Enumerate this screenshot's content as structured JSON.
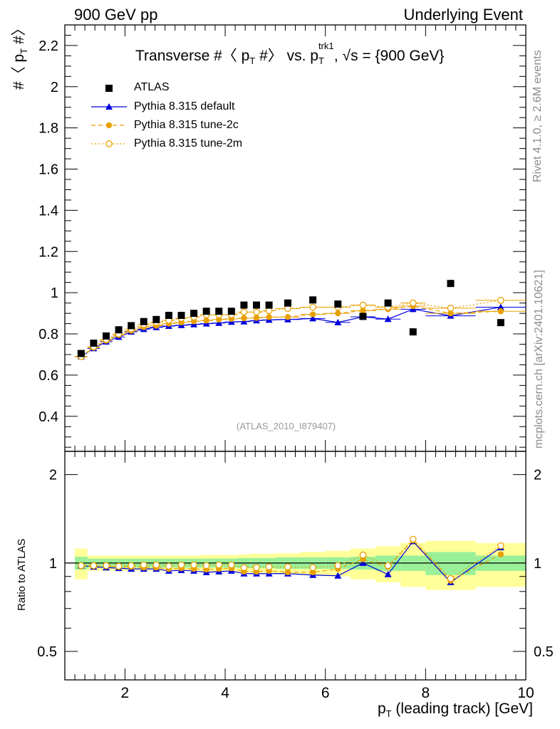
{
  "header": {
    "left": "900 GeV pp",
    "right": "Underlying Event"
  },
  "title": {
    "prefix": "Transverse #〈 p",
    "sub1": "T",
    "mid": " #〉 vs. p",
    "sup2": "trk1",
    "sub2": "T",
    "suffix": ", √s = {900 GeV}"
  },
  "side_labels": {
    "upper": "Rivet 4.1.0, ≥ 2.6M events",
    "lower": "mcplots.cern.ch [arXiv:2401.10621]"
  },
  "analysis_tag": "(ATLAS_2010_I879407)",
  "axes": {
    "ylabel_main_prefix": "#〈 p",
    "ylabel_main_sub": "T",
    "ylabel_main_suffix": " #〉",
    "ylabel_ratio": "Ratio to ATLAS",
    "xlabel_prefix": "p",
    "xlabel_sub": "T",
    "xlabel_suffix": " (leading track) [GeV]"
  },
  "legend": [
    {
      "label": "ATLAS",
      "color": "#000000",
      "marker": "square-icon"
    },
    {
      "label": "Pythia 8.315 default",
      "color": "#0000dd",
      "marker": "triangle-icon"
    },
    {
      "label": "Pythia 8.315 tune-2c",
      "color": "#e8a000",
      "marker": "filled-circle-icon"
    },
    {
      "label": "Pythia 8.315 tune-2m",
      "color": "#e8a000",
      "marker": "open-circle-icon"
    }
  ],
  "chart_data": {
    "type": "scatter",
    "main": {
      "xlim": [
        0.8,
        10.0
      ],
      "ylim": [
        0.23,
        2.3
      ],
      "xticks": [
        2,
        4,
        6,
        8,
        10
      ],
      "yticks": [
        0.4,
        0.6,
        0.8,
        1,
        1.2,
        1.4,
        1.6,
        1.8,
        2,
        2.2
      ],
      "ytick_labels": [
        "0.4",
        "0.6",
        "0.8",
        "1",
        "1.2",
        "1.4",
        "1.6",
        "1.8",
        "2",
        "2.2"
      ],
      "x": [
        1.125,
        1.375,
        1.625,
        1.875,
        2.125,
        2.375,
        2.625,
        2.875,
        3.125,
        3.375,
        3.625,
        3.875,
        4.125,
        4.375,
        4.625,
        4.875,
        5.25,
        5.75,
        6.25,
        6.75,
        7.25,
        7.75,
        8.5,
        9.5
      ],
      "xerr": [
        0.125,
        0.125,
        0.125,
        0.125,
        0.125,
        0.125,
        0.125,
        0.125,
        0.125,
        0.125,
        0.125,
        0.125,
        0.125,
        0.125,
        0.125,
        0.125,
        0.25,
        0.25,
        0.25,
        0.25,
        0.25,
        0.25,
        0.5,
        0.5
      ],
      "series": [
        {
          "name": "ATLAS",
          "values": [
            0.705,
            0.755,
            0.79,
            0.82,
            0.84,
            0.86,
            0.87,
            0.89,
            0.89,
            0.9,
            0.91,
            0.91,
            0.91,
            0.94,
            0.94,
            0.94,
            0.95,
            0.965,
            0.945,
            0.885,
            0.95,
            0.81,
            1.045,
            0.855
          ]
        },
        {
          "name": "Pythia 8.315 default",
          "values": [
            0.69,
            0.73,
            0.762,
            0.785,
            0.81,
            0.823,
            0.832,
            0.838,
            0.842,
            0.846,
            0.85,
            0.853,
            0.858,
            0.86,
            0.865,
            0.868,
            0.87,
            0.875,
            0.856,
            0.883,
            0.872,
            0.92,
            0.888,
            0.93
          ]
        },
        {
          "name": "Pythia 8.315 tune-2c",
          "values": [
            0.688,
            0.733,
            0.767,
            0.795,
            0.815,
            0.833,
            0.84,
            0.85,
            0.856,
            0.861,
            0.865,
            0.87,
            0.873,
            0.876,
            0.878,
            0.882,
            0.882,
            0.895,
            0.9,
            0.913,
            0.92,
            0.935,
            0.9,
            0.91
          ]
        },
        {
          "name": "Pythia 8.315 tune-2m",
          "values": [
            0.69,
            0.737,
            0.773,
            0.8,
            0.824,
            0.845,
            0.856,
            0.866,
            0.876,
            0.882,
            0.893,
            0.893,
            0.893,
            0.906,
            0.906,
            0.913,
            0.923,
            0.93,
            0.93,
            0.94,
            0.93,
            0.95,
            0.925,
            0.963
          ]
        }
      ]
    },
    "ratio": {
      "ylim": [
        0.4,
        2.4
      ],
      "log": true,
      "yticks": [
        0.5,
        1,
        2
      ],
      "ytick_labels": [
        "0.5",
        "1",
        "2"
      ],
      "band_inner": [
        0.05,
        0.035,
        0.035,
        0.035,
        0.035,
        0.035,
        0.035,
        0.035,
        0.035,
        0.035,
        0.035,
        0.035,
        0.035,
        0.04,
        0.04,
        0.04,
        0.045,
        0.045,
        0.045,
        0.05,
        0.06,
        0.06,
        0.09,
        0.06
      ],
      "band_outer": [
        0.12,
        0.06,
        0.06,
        0.06,
        0.06,
        0.06,
        0.06,
        0.06,
        0.06,
        0.06,
        0.065,
        0.065,
        0.065,
        0.07,
        0.075,
        0.075,
        0.08,
        0.09,
        0.1,
        0.12,
        0.14,
        0.17,
        0.19,
        0.17
      ],
      "series": [
        {
          "name": "Pythia 8.315 default",
          "values": [
            0.98,
            0.97,
            0.965,
            0.96,
            0.955,
            0.955,
            0.955,
            0.94,
            0.945,
            0.94,
            0.93,
            0.935,
            0.94,
            0.92,
            0.92,
            0.92,
            0.92,
            0.91,
            0.905,
            1.0,
            0.915,
            1.185,
            0.86,
            1.13
          ]
        },
        {
          "name": "Pythia 8.315 tune-2c",
          "values": [
            0.975,
            0.975,
            0.975,
            0.97,
            0.97,
            0.965,
            0.965,
            0.955,
            0.96,
            0.955,
            0.95,
            0.955,
            0.96,
            0.935,
            0.935,
            0.94,
            0.93,
            0.93,
            0.955,
            1.03,
            0.97,
            1.195,
            0.87,
            1.07
          ]
        },
        {
          "name": "Pythia 8.315 tune-2m",
          "values": [
            0.98,
            0.98,
            0.98,
            0.975,
            0.98,
            0.985,
            0.985,
            0.975,
            0.985,
            0.985,
            0.98,
            0.985,
            0.985,
            0.965,
            0.965,
            0.97,
            0.97,
            0.965,
            0.98,
            1.065,
            0.98,
            1.205,
            0.885,
            1.145
          ]
        }
      ]
    }
  }
}
